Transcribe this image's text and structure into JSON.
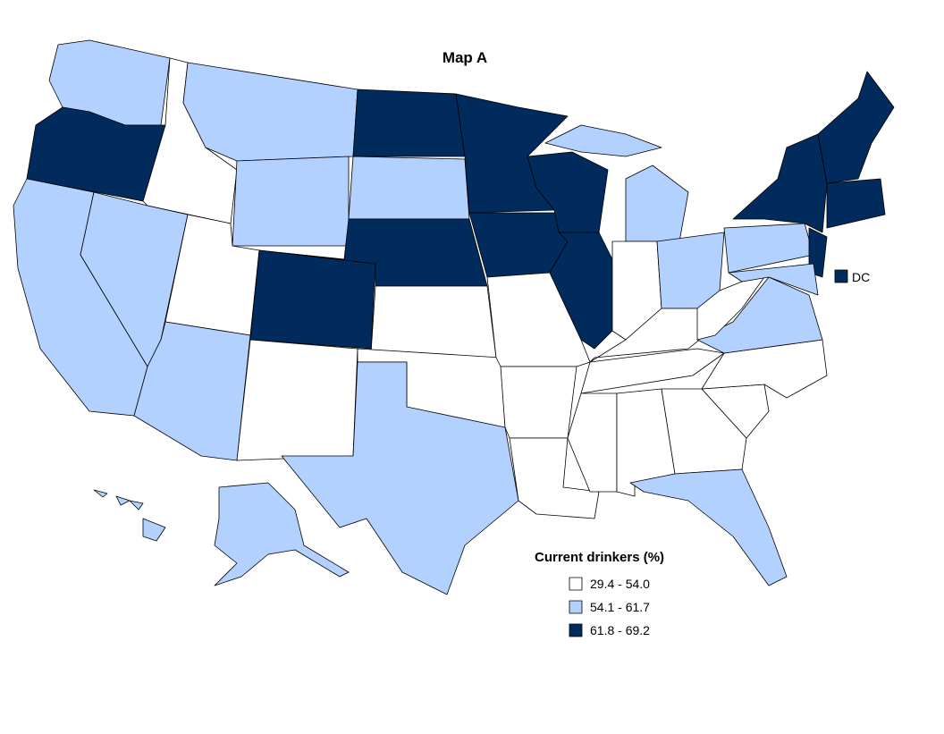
{
  "title": "Map A",
  "legend": {
    "title": "Current drinkers (%)",
    "items": [
      {
        "label": "29.4 - 54.0",
        "color": "#ffffff"
      },
      {
        "label": "54.1 - 61.7",
        "color": "#b3d1ff"
      },
      {
        "label": "61.8 - 69.2",
        "color": "#002b5c"
      }
    ]
  },
  "dc_label": "DC"
}
